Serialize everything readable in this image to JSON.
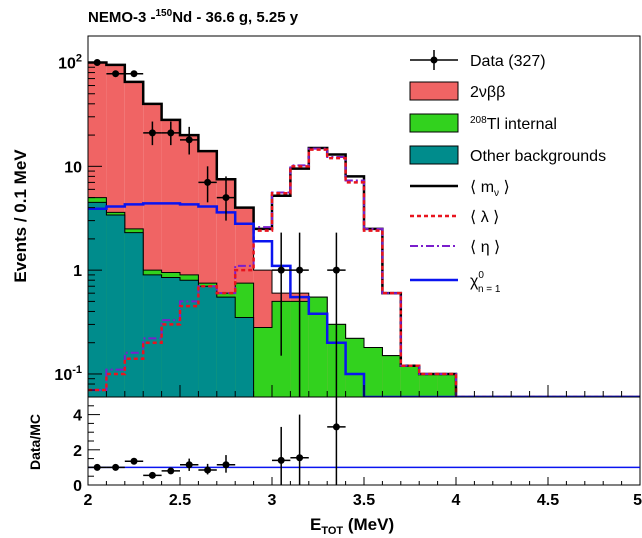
{
  "chart_data": [
    {
      "type": "histogram",
      "title": "NEMO-3 -",
      "title_isotope_mass": "150",
      "title_isotope": "Nd - 36.6 g, 5.25 y",
      "ylabel": "Events / 0.1 MeV",
      "xlabel_main": "E",
      "xlabel_sub": "TOT",
      "xlabel_unit": " (MeV)",
      "xlim": [
        2,
        5
      ],
      "ylim": [
        0.06,
        180
      ],
      "yscale": "log",
      "x_ticks": [
        "2",
        "2.5",
        "3",
        "3.5",
        "4",
        "4.5",
        "5"
      ],
      "y_ticks": [
        {
          "value": 100,
          "base": "10",
          "exp": "2"
        },
        {
          "value": 10,
          "label": "10"
        },
        {
          "value": 1,
          "label": "1"
        },
        {
          "value": 0.1,
          "base": "10",
          "exp": "-1"
        }
      ],
      "legend_position": "top-right",
      "legend": {
        "data": "Data (327)",
        "bb": "2νββ",
        "tl_mass": "208",
        "tl": "Tl internal",
        "other": "Other backgrounds",
        "mnu_l": "⟨ m",
        "mnu_sub": "ν",
        "mnu_r": " ⟩",
        "lambda": "⟨ λ ⟩",
        "eta": "⟨ η ⟩",
        "chi": "χ",
        "chi_sup": "0",
        "chi_sub": "n = 1"
      },
      "colors": {
        "bb": "#f06464",
        "tl": "#32d21e",
        "other": "#008c8c",
        "chi": "#0a14f0",
        "lambda": "#e8141e",
        "eta": "#7a1ecc"
      },
      "bin_edges": [
        2.0,
        2.1,
        2.2,
        2.3,
        2.4,
        2.5,
        2.6,
        2.7,
        2.8,
        2.9,
        3.0,
        3.1,
        3.2,
        3.3,
        3.4,
        3.5,
        3.6,
        3.7,
        3.8,
        3.9,
        4.0,
        5.0
      ],
      "other_bkg": [
        4.5,
        3.4,
        2.3,
        0.9,
        0.85,
        0.8,
        0.7,
        0.55,
        0.35,
        0.06,
        0.06,
        0.06,
        0.06,
        0.06,
        0.06,
        0.06,
        0.06,
        0.06,
        0.06,
        0.06,
        0.06
      ],
      "tl_internal": [
        5.0,
        3.6,
        2.5,
        1.0,
        0.95,
        0.9,
        0.75,
        0.6,
        0.75,
        0.28,
        0.5,
        0.5,
        0.55,
        0.3,
        0.22,
        0.18,
        0.15,
        0.12,
        0.1,
        0.1,
        0.06
      ],
      "two_nu_bb": [
        100,
        95,
        65,
        40,
        28,
        20,
        14,
        7.5,
        4,
        1.0,
        0.6,
        0.6,
        0.55,
        0.3,
        0.22,
        0.18,
        0.15,
        0.12,
        0.1,
        0.1,
        0.06
      ],
      "mnu_signal": [
        100,
        95,
        65,
        40,
        28,
        20,
        14,
        7.5,
        4,
        2.5,
        5.2,
        9.5,
        15,
        13,
        8,
        2.5,
        0.6,
        0.12,
        0.1,
        0.1,
        0.06
      ],
      "lambda_signal": [
        0.07,
        0.1,
        0.14,
        0.2,
        0.3,
        0.45,
        0.7,
        0.6,
        1.0,
        2.4,
        5.5,
        10,
        14.5,
        12,
        7,
        2.4,
        0.6,
        0.12,
        0.1,
        0.1,
        0.06
      ],
      "eta_signal": [
        0.07,
        0.11,
        0.16,
        0.22,
        0.33,
        0.5,
        0.7,
        0.6,
        1.1,
        2.6,
        5.6,
        10.2,
        14.8,
        12.3,
        7.3,
        2.5,
        0.6,
        0.12,
        0.1,
        0.1,
        0.06
      ],
      "chi_signal": [
        3.9,
        4.1,
        4.3,
        4.4,
        4.4,
        4.3,
        4.1,
        3.6,
        2.8,
        1.9,
        1.1,
        0.55,
        0.38,
        0.2,
        0.1,
        0.06,
        0.06,
        0.06,
        0.06,
        0.06,
        0.06
      ],
      "data_points": [
        {
          "x": 2.05,
          "y": 100,
          "lo": 0,
          "hi": 0
        },
        {
          "x": 2.15,
          "y": 78,
          "lo": 0,
          "hi": 0
        },
        {
          "x": 2.25,
          "y": 78,
          "lo": 0,
          "hi": 0
        },
        {
          "x": 2.35,
          "y": 21,
          "lo": 16,
          "hi": 27
        },
        {
          "x": 2.45,
          "y": 21,
          "lo": 16,
          "hi": 27
        },
        {
          "x": 2.55,
          "y": 18,
          "lo": 13,
          "hi": 24
        },
        {
          "x": 2.65,
          "y": 7,
          "lo": 4.5,
          "hi": 10
        },
        {
          "x": 2.75,
          "y": 5,
          "lo": 3,
          "hi": 8
        },
        {
          "x": 3.05,
          "y": 1,
          "lo": 0.15,
          "hi": 2.3
        },
        {
          "x": 3.15,
          "y": 1,
          "lo": 0.06,
          "hi": 2.3
        },
        {
          "x": 3.35,
          "y": 1,
          "lo": 0.06,
          "hi": 2.3
        }
      ]
    },
    {
      "type": "ratio",
      "ylabel": "Data/MC",
      "ylim": [
        0,
        5
      ],
      "y_ticks": [
        "0",
        "2",
        "4"
      ],
      "reference": 1,
      "points": [
        {
          "x": 2.05,
          "y": 1.0,
          "lo": 0,
          "hi": 0
        },
        {
          "x": 2.15,
          "y": 1.0,
          "lo": 0,
          "hi": 0
        },
        {
          "x": 2.25,
          "y": 1.35,
          "lo": 0,
          "hi": 0
        },
        {
          "x": 2.35,
          "y": 0.55,
          "lo": 0,
          "hi": 0
        },
        {
          "x": 2.45,
          "y": 0.8,
          "lo": 0,
          "hi": 0
        },
        {
          "x": 2.55,
          "y": 1.15,
          "lo": 0.8,
          "hi": 1.5
        },
        {
          "x": 2.65,
          "y": 0.85,
          "lo": 0.6,
          "hi": 1.2
        },
        {
          "x": 2.75,
          "y": 1.15,
          "lo": 0.7,
          "hi": 1.7
        },
        {
          "x": 3.05,
          "y": 1.4,
          "lo": 0,
          "hi": 3.3
        },
        {
          "x": 3.15,
          "y": 1.55,
          "lo": 0,
          "hi": 4.0
        },
        {
          "x": 3.35,
          "y": 3.3,
          "lo": 0,
          "hi": 5.0
        }
      ]
    }
  ]
}
